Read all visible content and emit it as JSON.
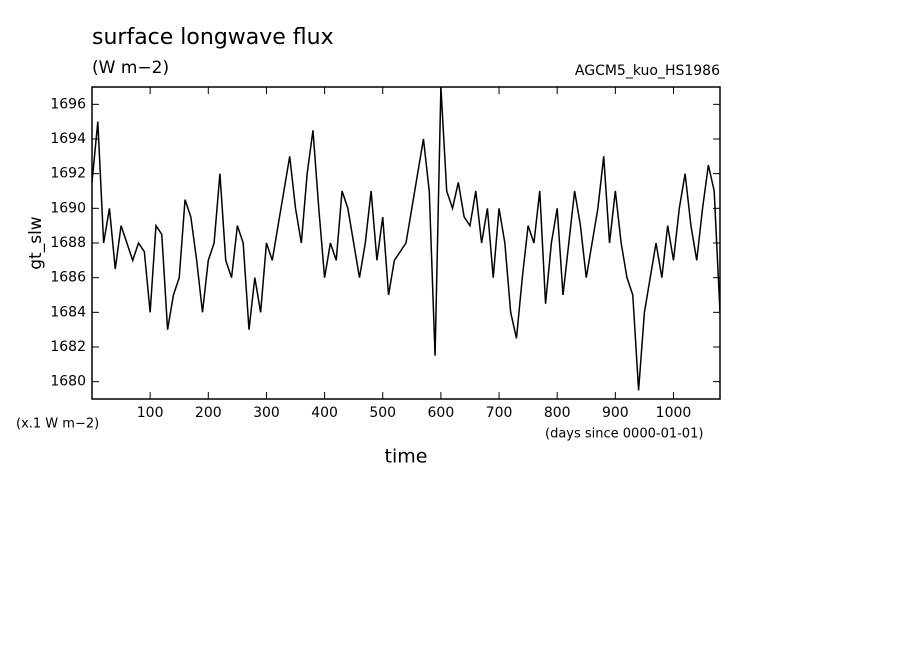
{
  "chart_data": {
    "type": "line",
    "title": "surface longwave flux",
    "subtitle": "(W m−2)",
    "annotation": "AGCM5_kuo_HS1986",
    "y_label": "gt_slw",
    "y_unit_note": "(x.1 W m−2)",
    "x_unit_note": "(days since 0000-01-01)",
    "x_label": "time",
    "color": "#000000",
    "xlim": [
      0,
      1080
    ],
    "ylim": [
      1679,
      1697
    ],
    "xticks": [
      100,
      200,
      300,
      400,
      500,
      600,
      700,
      800,
      900,
      1000
    ],
    "yticks": [
      1680,
      1682,
      1684,
      1686,
      1688,
      1690,
      1692,
      1694,
      1696
    ],
    "x": [
      0,
      10,
      20,
      30,
      40,
      50,
      60,
      70,
      80,
      90,
      100,
      110,
      120,
      130,
      140,
      150,
      160,
      170,
      180,
      190,
      200,
      210,
      220,
      230,
      240,
      250,
      260,
      270,
      280,
      290,
      300,
      310,
      320,
      330,
      340,
      350,
      360,
      370,
      380,
      390,
      400,
      410,
      420,
      430,
      440,
      450,
      460,
      470,
      480,
      490,
      500,
      510,
      520,
      530,
      540,
      550,
      560,
      570,
      580,
      590,
      600,
      610,
      620,
      630,
      640,
      650,
      660,
      670,
      680,
      690,
      700,
      710,
      720,
      730,
      740,
      750,
      760,
      770,
      780,
      790,
      800,
      810,
      820,
      830,
      840,
      850,
      860,
      870,
      880,
      890,
      900,
      910,
      920,
      930,
      940,
      950,
      960,
      970,
      980,
      990,
      1000,
      1010,
      1020,
      1030,
      1040,
      1050,
      1060,
      1070,
      1080
    ],
    "values": [
      1691.5,
      1695,
      1688,
      1690,
      1686.5,
      1689,
      1688,
      1687,
      1688,
      1687.5,
      1684,
      1689,
      1688.5,
      1683,
      1685,
      1686,
      1690.5,
      1689.5,
      1687,
      1684,
      1687,
      1688,
      1692,
      1687,
      1686,
      1689,
      1688,
      1683,
      1686,
      1684,
      1688,
      1687,
      1689,
      1691,
      1693,
      1690,
      1688,
      1692,
      1694.5,
      1690,
      1686,
      1688,
      1687,
      1691,
      1690,
      1688,
      1686,
      1688,
      1691,
      1687,
      1689.5,
      1685,
      1687,
      1687.5,
      1688,
      1690,
      1692,
      1694,
      1691,
      1681.5,
      1697,
      1691,
      1690,
      1691.5,
      1689.5,
      1689,
      1691,
      1688,
      1690,
      1686,
      1690,
      1688,
      1684,
      1682.5,
      1686,
      1689,
      1688,
      1691,
      1684.5,
      1688,
      1690,
      1685,
      1688,
      1691,
      1689,
      1686,
      1688,
      1690,
      1693,
      1688,
      1691,
      1688,
      1686,
      1685,
      1679.5,
      1684,
      1686,
      1688,
      1686,
      1689,
      1687,
      1690,
      1692,
      1689,
      1687,
      1690,
      1692.5,
      1691,
      1684
    ]
  }
}
